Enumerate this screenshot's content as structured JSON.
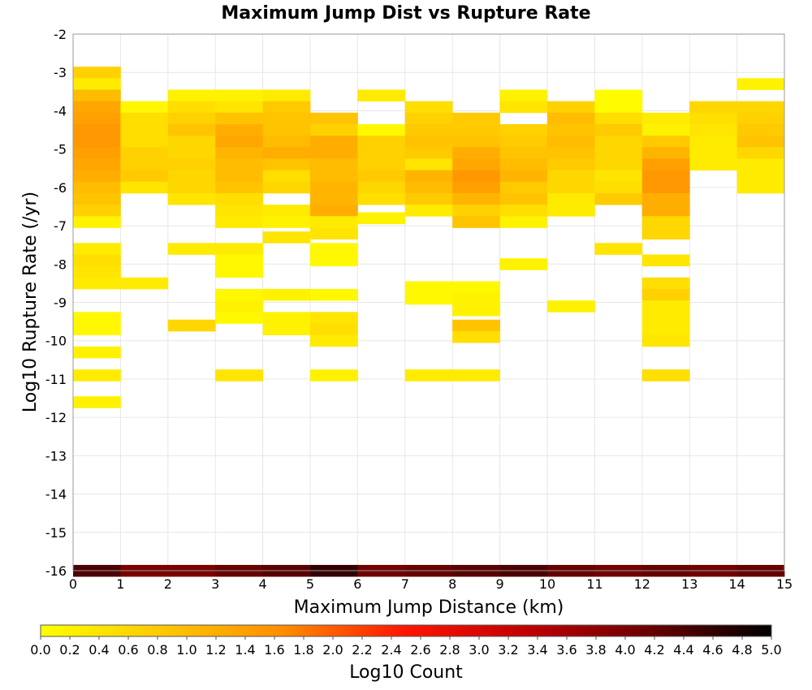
{
  "chart_data": {
    "type": "heatmap",
    "title": "Maximum Jump Dist vs Rupture Rate",
    "xlabel": "Maximum Jump Distance (km)",
    "ylabel": "Log10 Rupture Rate (/yr)",
    "xlim": [
      0,
      15
    ],
    "ylim": [
      -16,
      -2
    ],
    "x_ticks": [
      "0",
      "1",
      "2",
      "3",
      "4",
      "5",
      "6",
      "7",
      "8",
      "9",
      "10",
      "11",
      "12",
      "13",
      "14",
      "15"
    ],
    "y_ticks": [
      "-2",
      "-3",
      "-4",
      "-5",
      "-6",
      "-7",
      "-8",
      "-9",
      "-10",
      "-11",
      "-12",
      "-13",
      "-14",
      "-15",
      "-16"
    ],
    "cell_width": 1,
    "cell_height": 0.3,
    "grid": true,
    "colorbar": {
      "label": "Log10 Count",
      "range": [
        0,
        5
      ],
      "stops": [
        "#ffff00",
        "#ffc800",
        "#ff8c00",
        "#ff1400",
        "#c00000",
        "#6a0000",
        "#000000"
      ],
      "ticks": [
        "0.0",
        "0.2",
        "0.4",
        "0.6",
        "0.8",
        "1.0",
        "1.2",
        "1.4",
        "1.6",
        "1.8",
        "2.0",
        "2.2",
        "2.4",
        "2.6",
        "2.8",
        "3.0",
        "3.2",
        "3.4",
        "3.6",
        "3.8",
        "4.0",
        "4.2",
        "4.4",
        "4.6",
        "4.8",
        "5.0"
      ]
    },
    "columns": [
      {
        "x": 0,
        "cells": [
          [
            -3.0,
            0.7
          ],
          [
            -3.3,
            0.3
          ],
          [
            -3.6,
            1.0
          ],
          [
            -3.9,
            1.3
          ],
          [
            -4.2,
            1.4
          ],
          [
            -4.5,
            1.5
          ],
          [
            -4.8,
            1.5
          ],
          [
            -5.1,
            1.4
          ],
          [
            -5.4,
            1.3
          ],
          [
            -5.7,
            1.2
          ],
          [
            -6.0,
            1.0
          ],
          [
            -6.3,
            0.9
          ],
          [
            -6.6,
            0.7
          ],
          [
            -6.9,
            0.2
          ],
          [
            -7.6,
            0.3
          ],
          [
            -7.9,
            0.5
          ],
          [
            -8.2,
            0.4
          ],
          [
            -8.5,
            0.3
          ],
          [
            -9.4,
            0.1
          ],
          [
            -9.7,
            0.1
          ],
          [
            -10.3,
            0.2
          ],
          [
            -10.9,
            0.3
          ],
          [
            -11.6,
            0.2
          ],
          [
            -16.0,
            4.4
          ]
        ]
      },
      {
        "x": 1,
        "cells": [
          [
            -3.9,
            0.1
          ],
          [
            -4.2,
            0.5
          ],
          [
            -4.5,
            0.5
          ],
          [
            -4.8,
            0.5
          ],
          [
            -5.1,
            0.7
          ],
          [
            -5.4,
            0.7
          ],
          [
            -5.7,
            0.8
          ],
          [
            -6.0,
            0.4
          ],
          [
            -8.5,
            0.3
          ],
          [
            -16.0,
            4.0
          ]
        ]
      },
      {
        "x": 2,
        "cells": [
          [
            -3.6,
            0.2
          ],
          [
            -3.9,
            0.5
          ],
          [
            -4.2,
            0.7
          ],
          [
            -4.5,
            0.9
          ],
          [
            -4.8,
            0.6
          ],
          [
            -5.1,
            0.6
          ],
          [
            -5.4,
            0.7
          ],
          [
            -5.7,
            0.6
          ],
          [
            -6.0,
            0.6
          ],
          [
            -6.3,
            0.4
          ],
          [
            -7.6,
            0.3
          ],
          [
            -9.6,
            0.6
          ],
          [
            -16.0,
            4.0
          ]
        ]
      },
      {
        "x": 3,
        "cells": [
          [
            -3.6,
            0.2
          ],
          [
            -3.9,
            0.4
          ],
          [
            -4.2,
            0.9
          ],
          [
            -4.5,
            1.2
          ],
          [
            -4.8,
            1.3
          ],
          [
            -5.1,
            1.1
          ],
          [
            -5.4,
            1.0
          ],
          [
            -5.7,
            1.0
          ],
          [
            -6.0,
            0.9
          ],
          [
            -6.3,
            0.5
          ],
          [
            -6.6,
            0.4
          ],
          [
            -6.9,
            0.3
          ],
          [
            -7.6,
            0.3
          ],
          [
            -7.9,
            0.1
          ],
          [
            -8.2,
            0.1
          ],
          [
            -8.8,
            0.1
          ],
          [
            -9.1,
            0.2
          ],
          [
            -9.4,
            0.1
          ],
          [
            -10.9,
            0.4
          ],
          [
            -16.0,
            4.2
          ]
        ]
      },
      {
        "x": 4,
        "cells": [
          [
            -3.6,
            0.3
          ],
          [
            -3.9,
            0.8
          ],
          [
            -4.2,
            0.9
          ],
          [
            -4.5,
            0.9
          ],
          [
            -4.8,
            1.0
          ],
          [
            -5.1,
            1.2
          ],
          [
            -5.4,
            0.9
          ],
          [
            -5.7,
            0.5
          ],
          [
            -6.0,
            0.6
          ],
          [
            -6.6,
            0.3
          ],
          [
            -6.9,
            0.2
          ],
          [
            -7.3,
            0.4
          ],
          [
            -8.8,
            0.2
          ],
          [
            -9.4,
            0.2
          ],
          [
            -9.7,
            0.2
          ],
          [
            -16.0,
            4.3
          ]
        ]
      },
      {
        "x": 5,
        "cells": [
          [
            -4.2,
            0.9
          ],
          [
            -4.5,
            0.7
          ],
          [
            -4.8,
            1.2
          ],
          [
            -5.1,
            1.2
          ],
          [
            -5.4,
            1.0
          ],
          [
            -5.7,
            1.0
          ],
          [
            -6.0,
            1.1
          ],
          [
            -6.3,
            1.1
          ],
          [
            -6.6,
            1.2
          ],
          [
            -6.9,
            0.3
          ],
          [
            -7.2,
            0.4
          ],
          [
            -7.6,
            0.1
          ],
          [
            -7.9,
            0.1
          ],
          [
            -8.8,
            0.1
          ],
          [
            -9.4,
            0.4
          ],
          [
            -9.7,
            0.5
          ],
          [
            -10.0,
            0.3
          ],
          [
            -10.9,
            0.2
          ],
          [
            -16.0,
            4.6
          ]
        ]
      },
      {
        "x": 6,
        "cells": [
          [
            -3.6,
            0.3
          ],
          [
            -4.5,
            0.1
          ],
          [
            -4.8,
            0.7
          ],
          [
            -5.1,
            0.7
          ],
          [
            -5.4,
            0.7
          ],
          [
            -5.7,
            0.8
          ],
          [
            -6.0,
            0.6
          ],
          [
            -6.3,
            0.5
          ],
          [
            -6.8,
            0.2
          ],
          [
            -16.0,
            4.1
          ]
        ]
      },
      {
        "x": 7,
        "cells": [
          [
            -3.9,
            0.5
          ],
          [
            -4.2,
            0.7
          ],
          [
            -4.5,
            0.8
          ],
          [
            -4.8,
            0.9
          ],
          [
            -5.1,
            0.8
          ],
          [
            -5.4,
            0.4
          ],
          [
            -5.7,
            1.1
          ],
          [
            -6.0,
            1.0
          ],
          [
            -6.3,
            0.8
          ],
          [
            -6.6,
            0.3
          ],
          [
            -8.6,
            0.1
          ],
          [
            -8.9,
            0.1
          ],
          [
            -10.9,
            0.3
          ],
          [
            -16.0,
            4.2
          ]
        ]
      },
      {
        "x": 8,
        "cells": [
          [
            -4.2,
            0.8
          ],
          [
            -4.5,
            0.8
          ],
          [
            -4.8,
            0.9
          ],
          [
            -5.1,
            1.2
          ],
          [
            -5.4,
            1.3
          ],
          [
            -5.7,
            1.5
          ],
          [
            -6.0,
            1.4
          ],
          [
            -6.3,
            1.1
          ],
          [
            -6.6,
            0.7
          ],
          [
            -6.9,
            0.9
          ],
          [
            -8.6,
            0.1
          ],
          [
            -8.9,
            0.2
          ],
          [
            -9.2,
            0.2
          ],
          [
            -9.6,
            0.9
          ],
          [
            -9.9,
            0.5
          ],
          [
            -10.9,
            0.3
          ],
          [
            -16.0,
            4.3
          ]
        ]
      },
      {
        "x": 9,
        "cells": [
          [
            -3.6,
            0.2
          ],
          [
            -3.9,
            0.4
          ],
          [
            -4.5,
            0.7
          ],
          [
            -4.8,
            0.8
          ],
          [
            -5.1,
            0.9
          ],
          [
            -5.4,
            1.0
          ],
          [
            -5.7,
            1.1
          ],
          [
            -6.0,
            0.8
          ],
          [
            -6.3,
            0.9
          ],
          [
            -6.6,
            0.5
          ],
          [
            -6.9,
            0.2
          ],
          [
            -8.0,
            0.2
          ],
          [
            -16.0,
            4.4
          ]
        ]
      },
      {
        "x": 10,
        "cells": [
          [
            -3.9,
            0.7
          ],
          [
            -4.2,
            1.0
          ],
          [
            -4.5,
            0.9
          ],
          [
            -4.8,
            1.0
          ],
          [
            -5.1,
            0.9
          ],
          [
            -5.4,
            0.8
          ],
          [
            -5.7,
            0.6
          ],
          [
            -6.0,
            0.6
          ],
          [
            -6.3,
            0.3
          ],
          [
            -6.6,
            0.3
          ],
          [
            -9.1,
            0.2
          ],
          [
            -16.0,
            4.2
          ]
        ]
      },
      {
        "x": 11,
        "cells": [
          [
            -3.6,
            0.05
          ],
          [
            -3.9,
            0.05
          ],
          [
            -4.2,
            0.5
          ],
          [
            -4.5,
            0.8
          ],
          [
            -4.8,
            0.6
          ],
          [
            -5.1,
            0.6
          ],
          [
            -5.4,
            0.6
          ],
          [
            -5.7,
            0.4
          ],
          [
            -6.0,
            0.5
          ],
          [
            -6.3,
            0.8
          ],
          [
            -7.6,
            0.4
          ],
          [
            -16.0,
            4.1
          ]
        ]
      },
      {
        "x": 12,
        "cells": [
          [
            -4.2,
            0.3
          ],
          [
            -4.5,
            0.2
          ],
          [
            -4.8,
            0.8
          ],
          [
            -5.1,
            1.1
          ],
          [
            -5.4,
            1.4
          ],
          [
            -5.7,
            1.5
          ],
          [
            -6.0,
            1.5
          ],
          [
            -6.3,
            1.2
          ],
          [
            -6.6,
            1.2
          ],
          [
            -6.9,
            0.6
          ],
          [
            -7.2,
            0.6
          ],
          [
            -7.9,
            0.4
          ],
          [
            -8.5,
            0.5
          ],
          [
            -8.8,
            0.7
          ],
          [
            -9.1,
            0.3
          ],
          [
            -9.4,
            0.3
          ],
          [
            -9.7,
            0.3
          ],
          [
            -10.0,
            0.4
          ],
          [
            -10.9,
            0.5
          ],
          [
            -16.0,
            4.2
          ]
        ]
      },
      {
        "x": 13,
        "cells": [
          [
            -3.9,
            0.6
          ],
          [
            -4.2,
            0.5
          ],
          [
            -4.5,
            0.4
          ],
          [
            -4.8,
            0.3
          ],
          [
            -5.1,
            0.3
          ],
          [
            -5.4,
            0.3
          ],
          [
            -16.0,
            4.1
          ]
        ]
      },
      {
        "x": 14,
        "cells": [
          [
            -3.3,
            0.2
          ],
          [
            -3.9,
            0.6
          ],
          [
            -4.2,
            0.7
          ],
          [
            -4.5,
            0.8
          ],
          [
            -4.8,
            0.9
          ],
          [
            -5.1,
            0.6
          ],
          [
            -5.4,
            0.3
          ],
          [
            -5.7,
            0.3
          ],
          [
            -6.0,
            0.3
          ],
          [
            -16.0,
            4.2
          ]
        ]
      }
    ]
  }
}
